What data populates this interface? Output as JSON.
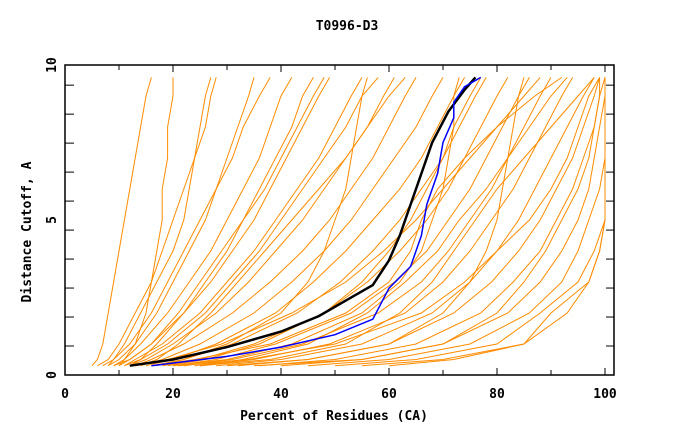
{
  "chart_data": {
    "type": "line",
    "title": "T0996-D3",
    "xlabel": "Percent of Residues (CA)",
    "ylabel": "Distance Cutoff, A",
    "xlim": [
      0,
      100
    ],
    "ylim": [
      0,
      10
    ],
    "x_ticks": [
      "0",
      "20",
      "40",
      "60",
      "80",
      "100"
    ],
    "y_ticks": [
      "0",
      "5",
      "10"
    ],
    "grid": false,
    "colors": {
      "other_models": "#ff8c00",
      "highlight_black": "#000000",
      "highlight_blue": "#0000ff"
    },
    "orange_y_levels": [
      0.3,
      0.5,
      1,
      2,
      3,
      4,
      5,
      6,
      7,
      8,
      9,
      9.6
    ],
    "orange_series_x": [
      [
        5,
        6,
        7,
        8,
        9,
        10,
        11,
        12,
        13,
        14,
        15,
        16
      ],
      [
        10,
        11,
        13,
        15,
        16,
        17,
        18,
        18,
        19,
        19,
        20,
        20
      ],
      [
        6,
        8,
        10,
        13,
        16,
        18,
        20,
        22,
        24,
        26,
        27,
        28
      ],
      [
        8,
        10,
        13,
        17,
        20,
        23,
        26,
        28,
        30,
        32,
        34,
        35
      ],
      [
        9,
        11,
        14,
        19,
        23,
        27,
        30,
        33,
        36,
        38,
        40,
        42
      ],
      [
        10,
        12,
        16,
        22,
        27,
        31,
        35,
        38,
        41,
        44,
        47,
        49
      ],
      [
        11,
        13,
        18,
        25,
        30,
        35,
        39,
        43,
        47,
        50,
        53,
        55
      ],
      [
        12,
        15,
        20,
        28,
        34,
        39,
        44,
        48,
        52,
        56,
        59,
        61
      ],
      [
        13,
        16,
        22,
        31,
        38,
        44,
        49,
        53,
        57,
        60,
        63,
        65
      ],
      [
        14,
        18,
        25,
        35,
        42,
        48,
        53,
        57,
        61,
        65,
        68,
        70
      ],
      [
        15,
        20,
        28,
        39,
        46,
        52,
        57,
        62,
        66,
        69,
        72,
        74
      ],
      [
        16,
        22,
        31,
        43,
        51,
        57,
        62,
        66,
        70,
        73,
        76,
        78
      ],
      [
        18,
        25,
        35,
        48,
        56,
        62,
        67,
        71,
        74,
        77,
        80,
        82
      ],
      [
        20,
        28,
        39,
        53,
        61,
        67,
        71,
        75,
        78,
        81,
        84,
        86
      ],
      [
        22,
        31,
        44,
        58,
        66,
        71,
        75,
        79,
        82,
        85,
        88,
        90
      ],
      [
        25,
        35,
        49,
        63,
        70,
        75,
        79,
        83,
        86,
        89,
        92,
        94
      ],
      [
        28,
        40,
        55,
        68,
        75,
        80,
        84,
        87,
        90,
        93,
        96,
        98
      ],
      [
        32,
        45,
        60,
        72,
        79,
        84,
        88,
        91,
        94,
        96,
        98,
        99
      ],
      [
        36,
        50,
        65,
        77,
        83,
        88,
        91,
        94,
        96,
        98,
        99,
        100
      ],
      [
        40,
        55,
        70,
        82,
        88,
        92,
        95,
        97,
        98,
        99,
        100,
        100
      ],
      [
        45,
        60,
        75,
        86,
        92,
        95,
        97,
        99,
        100,
        100,
        100,
        100
      ],
      [
        50,
        65,
        80,
        88,
        95,
        98,
        100,
        100,
        100,
        100,
        100,
        100
      ],
      [
        55,
        70,
        85,
        90,
        97,
        99,
        100,
        100,
        100,
        100,
        100,
        100
      ],
      [
        30,
        45,
        60,
        70,
        75,
        78,
        80,
        81,
        82,
        83,
        84,
        85
      ],
      [
        20,
        30,
        42,
        55,
        62,
        66,
        68,
        70,
        71,
        72,
        72,
        73
      ],
      [
        17,
        22,
        30,
        40,
        45,
        48,
        50,
        52,
        53,
        54,
        55,
        56
      ],
      [
        25,
        38,
        52,
        62,
        68,
        72,
        76,
        80,
        85,
        90,
        95,
        98
      ],
      [
        14,
        17,
        21,
        27,
        32,
        37,
        42,
        47,
        52,
        56,
        60,
        63
      ],
      [
        9,
        12,
        16,
        21,
        25,
        29,
        33,
        37,
        40,
        43,
        46,
        48
      ],
      [
        7,
        9,
        12,
        16,
        19,
        22,
        25,
        28,
        31,
        33,
        36,
        38
      ],
      [
        12,
        14,
        17,
        22,
        26,
        30,
        33,
        36,
        39,
        42,
        44,
        46
      ],
      [
        35,
        55,
        70,
        80,
        85,
        89,
        92,
        95,
        97,
        98,
        99,
        99
      ],
      [
        60,
        72,
        85,
        93,
        97,
        99,
        100,
        100,
        100,
        100,
        100,
        100
      ],
      [
        24,
        33,
        45,
        56,
        63,
        69,
        73,
        78,
        82,
        86,
        90,
        93
      ],
      [
        19,
        26,
        36,
        48,
        55,
        60,
        64,
        67,
        70,
        72,
        75,
        77
      ],
      [
        11,
        14,
        19,
        26,
        31,
        36,
        40,
        44,
        48,
        52,
        55,
        58
      ],
      [
        16,
        24,
        38,
        52,
        60,
        64,
        66,
        69,
        74,
        80,
        87,
        92
      ],
      [
        21,
        34,
        50,
        66,
        74,
        80,
        86,
        90,
        93,
        95,
        97,
        99
      ],
      [
        8,
        9,
        11,
        14,
        17,
        20,
        22,
        23,
        24,
        25,
        26,
        27
      ],
      [
        13,
        19,
        29,
        42,
        52,
        59,
        65,
        70,
        75,
        80,
        85,
        88
      ]
    ],
    "series": [
      {
        "name": "black",
        "x": [
          12,
          20,
          30,
          40,
          47,
          52,
          57,
          60,
          62,
          64,
          66,
          68,
          71,
          74,
          76
        ],
        "y": [
          0.3,
          0.5,
          0.9,
          1.4,
          1.9,
          2.4,
          2.9,
          3.7,
          4.5,
          5.5,
          6.5,
          7.5,
          8.5,
          9.2,
          9.6
        ]
      },
      {
        "name": "blue",
        "x": [
          16,
          30,
          40,
          50,
          57,
          60,
          64,
          66,
          67,
          69,
          70,
          72,
          72,
          74,
          77
        ],
        "y": [
          0.3,
          0.6,
          0.9,
          1.3,
          1.8,
          2.8,
          3.5,
          4.5,
          5.5,
          6.5,
          7.5,
          8.3,
          8.8,
          9.3,
          9.6
        ]
      }
    ]
  }
}
